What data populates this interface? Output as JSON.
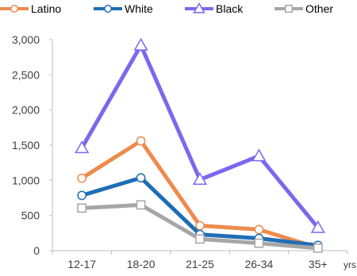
{
  "chart_data": {
    "type": "line",
    "categories": [
      "12-17",
      "18-20",
      "21-25",
      "26-34",
      "35+"
    ],
    "x_unit_label": "yrs",
    "series": [
      {
        "name": "Latino",
        "values": [
          1030,
          1560,
          355,
          300,
          40
        ],
        "color": "#ED8B4D",
        "marker": "circle"
      },
      {
        "name": "White",
        "values": [
          785,
          1035,
          230,
          175,
          75
        ],
        "color": "#1E6EB5",
        "marker": "circle"
      },
      {
        "name": "Black",
        "values": [
          1460,
          2920,
          1010,
          1345,
          325
        ],
        "color": "#7B68EE",
        "marker": "triangle"
      },
      {
        "name": "Other",
        "values": [
          605,
          650,
          165,
          105,
          35
        ],
        "color": "#A6A6A6",
        "marker": "square"
      }
    ],
    "yticks": [
      "0",
      "500",
      "1,000",
      "1,500",
      "2,000",
      "2,500",
      "3,000"
    ],
    "ylim": [
      0,
      3000
    ],
    "grid": false,
    "legend_position": "top"
  }
}
